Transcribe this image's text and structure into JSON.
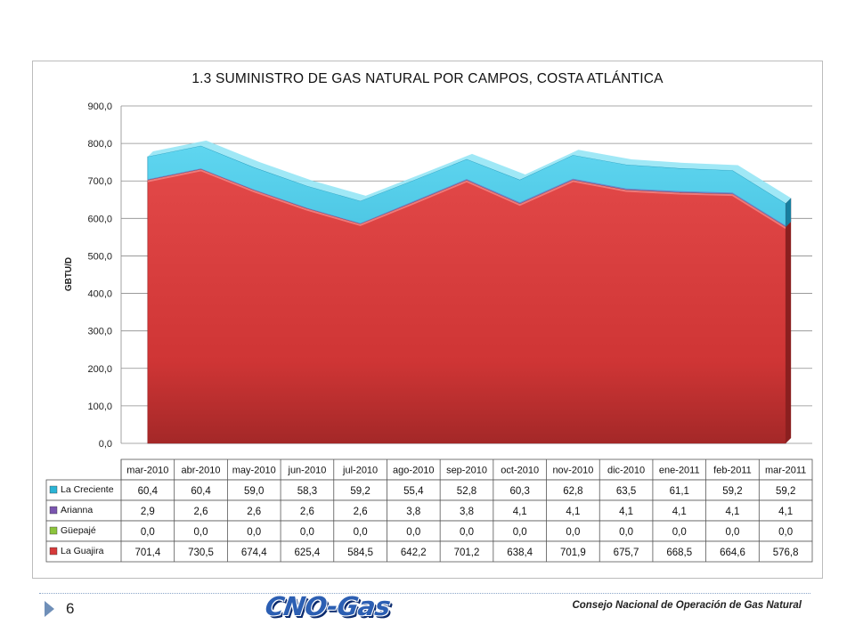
{
  "slide": {
    "page_number": "6",
    "logo_text": "CNO-Gas",
    "footer_text": "Consejo Nacional de Operación de Gas Natural"
  },
  "chart_data": {
    "type": "area",
    "stacked": true,
    "title": "1.3  SUMINISTRO DE GAS NATURAL POR CAMPOS, COSTA ATLÁNTICA",
    "ylabel": "GBTU/D",
    "ylim": [
      0,
      900
    ],
    "yticks": [
      "0,0",
      "100,0",
      "200,0",
      "300,0",
      "400,0",
      "500,0",
      "600,0",
      "700,0",
      "800,0",
      "900,0"
    ],
    "grid": true,
    "categories": [
      "mar-2010",
      "abr-2010",
      "may-2010",
      "jun-2010",
      "jul-2010",
      "ago-2010",
      "sep-2010",
      "oct-2010",
      "nov-2010",
      "dic-2010",
      "ene-2011",
      "feb-2011",
      "mar-2011"
    ],
    "series": [
      {
        "name": "La Creciente",
        "color": "#2ab4d6",
        "values": [
          60.4,
          60.4,
          59.0,
          58.3,
          59.2,
          55.4,
          52.8,
          60.3,
          62.8,
          63.5,
          61.1,
          59.2,
          59.2
        ],
        "labels": [
          "60,4",
          "60,4",
          "59,0",
          "58,3",
          "59,2",
          "55,4",
          "52,8",
          "60,3",
          "62,8",
          "63,5",
          "61,1",
          "59,2",
          "59,2"
        ]
      },
      {
        "name": "Arianna",
        "color": "#7a55b0",
        "values": [
          2.9,
          2.6,
          2.6,
          2.6,
          2.6,
          3.8,
          3.8,
          4.1,
          4.1,
          4.1,
          4.1,
          4.1,
          4.1
        ],
        "labels": [
          "2,9",
          "2,6",
          "2,6",
          "2,6",
          "2,6",
          "3,8",
          "3,8",
          "4,1",
          "4,1",
          "4,1",
          "4,1",
          "4,1",
          "4,1"
        ]
      },
      {
        "name": "Güepajé",
        "color": "#8cc43c",
        "values": [
          0,
          0,
          0,
          0,
          0,
          0,
          0,
          0,
          0,
          0,
          0,
          0,
          0
        ],
        "labels": [
          "0,0",
          "0,0",
          "0,0",
          "0,0",
          "0,0",
          "0,0",
          "0,0",
          "0,0",
          "0,0",
          "0,0",
          "0,0",
          "0,0",
          "0,0"
        ]
      },
      {
        "name": "La Guajira",
        "color": "#d63a3a",
        "values": [
          701.4,
          730.5,
          674.4,
          625.4,
          584.5,
          642.2,
          701.2,
          638.4,
          701.9,
          675.7,
          668.5,
          664.6,
          576.8
        ],
        "labels": [
          "701,4",
          "730,5",
          "674,4",
          "625,4",
          "584,5",
          "642,2",
          "701,2",
          "638,4",
          "701,9",
          "675,7",
          "668,5",
          "664,6",
          "576,8"
        ]
      }
    ]
  }
}
